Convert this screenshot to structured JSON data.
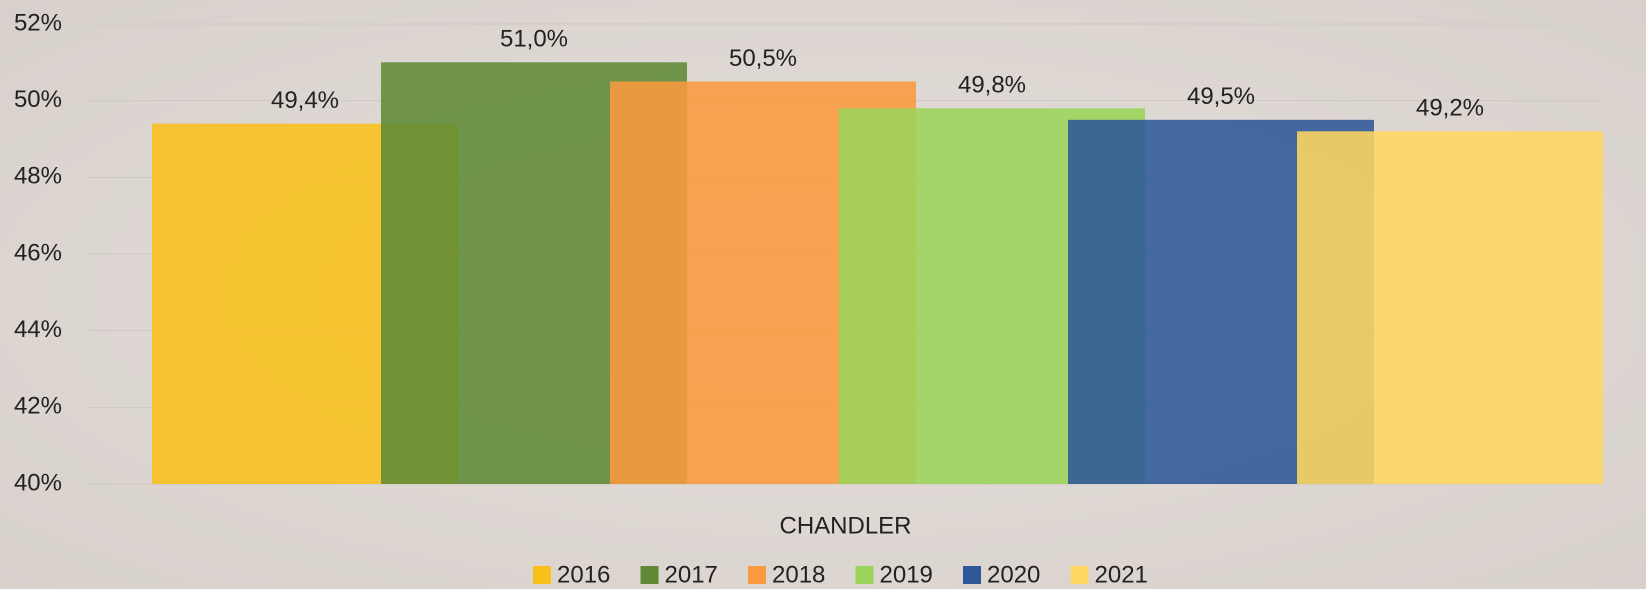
{
  "chart_data": {
    "type": "bar",
    "categories": [
      "CHANDLER"
    ],
    "series": [
      {
        "name": "2016",
        "color": "#f9bf1a",
        "values": [
          49.4
        ],
        "value_labels": [
          "49,4%"
        ]
      },
      {
        "name": "2017",
        "color": "#5e8a35",
        "values": [
          51.0
        ],
        "value_labels": [
          "51,0%"
        ]
      },
      {
        "name": "2018",
        "color": "#fa9a3e",
        "values": [
          50.5
        ],
        "value_labels": [
          "50,5%"
        ]
      },
      {
        "name": "2019",
        "color": "#9bd45a",
        "values": [
          49.8
        ],
        "value_labels": [
          "49,8%"
        ]
      },
      {
        "name": "2020",
        "color": "#2f5899",
        "values": [
          49.5
        ],
        "value_labels": [
          "49,5%"
        ]
      },
      {
        "name": "2021",
        "color": "#ffd760",
        "values": [
          49.2
        ],
        "value_labels": [
          "49,2%"
        ]
      }
    ],
    "ylim": [
      40,
      52
    ],
    "yticks": [
      {
        "value": 40,
        "label": "40%"
      },
      {
        "value": 42,
        "label": "42%"
      },
      {
        "value": 44,
        "label": "44%"
      },
      {
        "value": 46,
        "label": "46%"
      },
      {
        "value": 48,
        "label": "48%"
      },
      {
        "value": 50,
        "label": "50%"
      },
      {
        "value": 52,
        "label": "52%"
      }
    ],
    "grid": true,
    "legend": "bottom"
  }
}
